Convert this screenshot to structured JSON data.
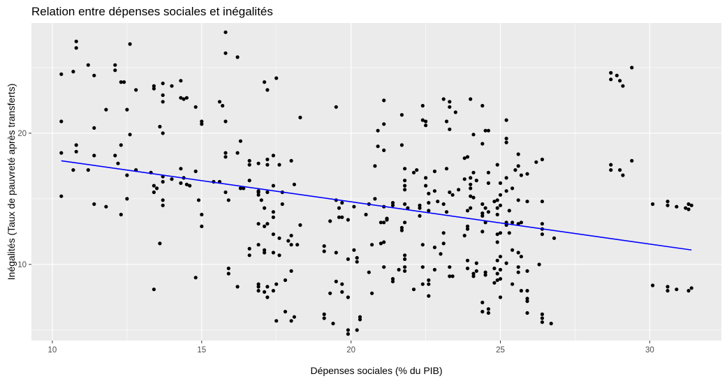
{
  "chart_data": {
    "type": "scatter",
    "title": "Relation entre dépenses sociales et inégalités",
    "xlabel": "Dépenses sociales (% du PIB)",
    "ylabel": "Inégalités (Taux de pauvreté après transferts)",
    "xlim": [
      9.3,
      32.4
    ],
    "ylim": [
      4.2,
      28.4
    ],
    "x_ticks": [
      10,
      15,
      20,
      25,
      30
    ],
    "y_ticks": [
      10,
      20
    ],
    "grid": true,
    "background": "#ebebeb",
    "point_color": "#000000",
    "trend_color": "#0000ff",
    "trend_line": {
      "x": [
        10.3,
        31.4
      ],
      "y": [
        17.9,
        11.1
      ]
    },
    "points": [
      [
        10.3,
        24.5
      ],
      [
        10.3,
        20.9
      ],
      [
        10.3,
        18.5
      ],
      [
        10.3,
        15.2
      ],
      [
        10.7,
        24.7
      ],
      [
        10.8,
        27.0
      ],
      [
        10.8,
        26.5
      ],
      [
        10.8,
        19.1
      ],
      [
        10.8,
        18.6
      ],
      [
        10.7,
        17.2
      ],
      [
        11.2,
        25.2
      ],
      [
        11.4,
        24.4
      ],
      [
        11.4,
        20.4
      ],
      [
        11.2,
        17.2
      ],
      [
        11.4,
        18.3
      ],
      [
        11.4,
        14.6
      ],
      [
        11.8,
        21.8
      ],
      [
        11.8,
        14.4
      ],
      [
        12.1,
        25.2
      ],
      [
        12.1,
        24.8
      ],
      [
        12.3,
        23.9
      ],
      [
        12.4,
        23.9
      ],
      [
        12.1,
        18.3
      ],
      [
        12.2,
        17.7
      ],
      [
        12.3,
        19.1
      ],
      [
        12.5,
        21.8
      ],
      [
        12.5,
        16.8
      ],
      [
        12.6,
        19.9
      ],
      [
        12.5,
        15.0
      ],
      [
        12.3,
        13.8
      ],
      [
        12.6,
        26.8
      ],
      [
        12.8,
        23.3
      ],
      [
        12.8,
        17.2
      ],
      [
        13.4,
        23.4
      ],
      [
        13.4,
        23.6
      ],
      [
        13.7,
        23.8
      ],
      [
        13.7,
        22.9
      ],
      [
        13.7,
        22.4
      ],
      [
        13.6,
        20.5
      ],
      [
        13.7,
        20.0
      ],
      [
        13.3,
        17.0
      ],
      [
        13.4,
        16.0
      ],
      [
        13.4,
        15.5
      ],
      [
        13.5,
        15.8
      ],
      [
        13.7,
        14.9
      ],
      [
        13.7,
        14.5
      ],
      [
        13.7,
        16.7
      ],
      [
        13.7,
        16.3
      ],
      [
        13.6,
        11.6
      ],
      [
        13.4,
        8.1
      ],
      [
        14.0,
        23.6
      ],
      [
        14.0,
        16.5
      ],
      [
        14.3,
        24.0
      ],
      [
        14.3,
        22.7
      ],
      [
        14.4,
        22.6
      ],
      [
        14.5,
        22.7
      ],
      [
        14.8,
        22.0
      ],
      [
        14.3,
        17.3
      ],
      [
        14.3,
        16.2
      ],
      [
        14.4,
        16.6
      ],
      [
        14.5,
        16.1
      ],
      [
        14.6,
        16.0
      ],
      [
        14.8,
        17.1
      ],
      [
        14.9,
        14.9
      ],
      [
        15.0,
        20.7
      ],
      [
        15.0,
        20.9
      ],
      [
        14.8,
        9.0
      ],
      [
        15.0,
        13.8
      ],
      [
        15.0,
        12.9
      ],
      [
        15.4,
        16.3
      ],
      [
        15.6,
        22.4
      ],
      [
        15.7,
        22.1
      ],
      [
        15.8,
        27.7
      ],
      [
        15.8,
        26.1
      ],
      [
        15.8,
        20.9
      ],
      [
        15.8,
        18.2
      ],
      [
        15.8,
        18.5
      ],
      [
        15.6,
        16.3
      ],
      [
        15.8,
        15.5
      ],
      [
        15.9,
        14.9
      ],
      [
        15.9,
        9.7
      ],
      [
        15.9,
        9.3
      ],
      [
        16.2,
        25.8
      ],
      [
        16.3,
        19.4
      ],
      [
        16.2,
        18.5
      ],
      [
        16.3,
        15.8
      ],
      [
        16.4,
        15.8
      ],
      [
        16.2,
        8.3
      ],
      [
        16.6,
        17.6
      ],
      [
        16.6,
        17.9
      ],
      [
        16.6,
        16.4
      ],
      [
        16.6,
        11.2
      ],
      [
        16.6,
        10.7
      ],
      [
        16.9,
        17.7
      ],
      [
        16.9,
        15.6
      ],
      [
        16.9,
        15.5
      ],
      [
        16.9,
        15.3
      ],
      [
        17.0,
        14.9
      ],
      [
        16.9,
        13.1
      ],
      [
        16.9,
        11.5
      ],
      [
        16.9,
        8.5
      ],
      [
        16.9,
        8.3
      ],
      [
        16.9,
        8.0
      ],
      [
        17.1,
        23.9
      ],
      [
        17.2,
        23.3
      ],
      [
        17.2,
        17.6
      ],
      [
        17.2,
        18.0
      ],
      [
        17.2,
        15.5
      ],
      [
        17.1,
        14.3
      ],
      [
        17.2,
        13.1
      ],
      [
        17.1,
        12.9
      ],
      [
        17.1,
        11.1
      ],
      [
        17.1,
        10.9
      ],
      [
        17.2,
        8.3
      ],
      [
        17.1,
        7.9
      ],
      [
        17.2,
        7.5
      ],
      [
        17.5,
        24.2
      ],
      [
        17.4,
        18.3
      ],
      [
        17.4,
        16.0
      ],
      [
        17.4,
        14.0
      ],
      [
        17.4,
        13.6
      ],
      [
        17.4,
        12.3
      ],
      [
        17.4,
        10.9
      ],
      [
        17.5,
        8.5
      ],
      [
        17.4,
        8.0
      ],
      [
        17.5,
        5.7
      ],
      [
        17.6,
        17.6
      ],
      [
        17.7,
        15.5
      ],
      [
        17.6,
        12.0
      ],
      [
        17.6,
        10.7
      ],
      [
        17.7,
        14.6
      ],
      [
        17.9,
        11.8
      ],
      [
        17.8,
        8.8
      ],
      [
        17.8,
        6.4
      ],
      [
        18.0,
        17.9
      ],
      [
        18.1,
        16.1
      ],
      [
        18.0,
        12.2
      ],
      [
        18.0,
        11.5
      ],
      [
        18.0,
        9.5
      ],
      [
        18.0,
        5.7
      ],
      [
        18.2,
        11.5
      ],
      [
        18.1,
        6.0
      ],
      [
        18.3,
        21.2
      ],
      [
        18.3,
        13.0
      ],
      [
        19.1,
        11.4
      ],
      [
        19.1,
        11.0
      ],
      [
        19.1,
        6.2
      ],
      [
        19.1,
        5.9
      ],
      [
        19.3,
        7.8
      ],
      [
        19.3,
        13.3
      ],
      [
        19.4,
        5.5
      ],
      [
        19.5,
        22.0
      ],
      [
        19.6,
        14.3
      ],
      [
        19.5,
        14.9
      ],
      [
        19.7,
        14.7
      ],
      [
        19.6,
        13.6
      ],
      [
        19.5,
        10.9
      ],
      [
        19.5,
        8.7
      ],
      [
        19.7,
        8.5
      ],
      [
        19.7,
        7.9
      ],
      [
        19.7,
        13.6
      ],
      [
        19.9,
        13.4
      ],
      [
        19.9,
        10.4
      ],
      [
        19.9,
        7.5
      ],
      [
        19.9,
        5.0
      ],
      [
        19.9,
        4.7
      ],
      [
        20.1,
        11.1
      ],
      [
        20.2,
        5.0
      ],
      [
        20.2,
        10.5
      ],
      [
        20.2,
        10.2
      ],
      [
        20.3,
        6.0
      ],
      [
        20.3,
        5.8
      ],
      [
        20.1,
        14.4
      ],
      [
        20.5,
        13.8
      ],
      [
        20.6,
        14.6
      ],
      [
        20.7,
        11.5
      ],
      [
        20.6,
        9.4
      ],
      [
        20.7,
        7.8
      ],
      [
        20.8,
        17.5
      ],
      [
        20.8,
        15.0
      ],
      [
        20.9,
        20.2
      ],
      [
        20.9,
        19.0
      ],
      [
        21.0,
        13.2
      ],
      [
        21.0,
        11.6
      ],
      [
        21.1,
        22.5
      ],
      [
        21.1,
        20.7
      ],
      [
        21.1,
        18.7
      ],
      [
        21.1,
        14.4
      ],
      [
        21.1,
        13.2
      ],
      [
        21.1,
        11.7
      ],
      [
        21.1,
        9.8
      ],
      [
        21.2,
        13.5
      ],
      [
        21.2,
        13.4
      ],
      [
        21.4,
        14.7
      ],
      [
        21.4,
        14.5
      ],
      [
        21.4,
        8.9
      ],
      [
        21.4,
        8.7
      ],
      [
        21.6,
        9.6
      ],
      [
        21.7,
        21.4
      ],
      [
        21.7,
        19.1
      ],
      [
        21.7,
        12.8
      ],
      [
        21.7,
        12.6
      ],
      [
        21.8,
        17.3
      ],
      [
        21.8,
        16.4
      ],
      [
        21.8,
        16.0
      ],
      [
        21.8,
        15.7
      ],
      [
        21.8,
        14.6
      ],
      [
        21.8,
        13.2
      ],
      [
        21.8,
        10.7
      ],
      [
        21.8,
        10.4
      ],
      [
        21.8,
        9.8
      ],
      [
        21.8,
        9.5
      ],
      [
        21.9,
        14.3
      ],
      [
        22.1,
        17.0
      ],
      [
        22.1,
        8.1
      ],
      [
        22.2,
        17.2
      ],
      [
        22.3,
        14.5
      ],
      [
        22.3,
        14.3
      ],
      [
        22.3,
        13.7
      ],
      [
        22.4,
        11.5
      ],
      [
        22.4,
        9.8
      ],
      [
        22.4,
        8.5
      ],
      [
        22.4,
        22.1
      ],
      [
        22.4,
        21.0
      ],
      [
        22.5,
        20.6
      ],
      [
        22.5,
        20.9
      ],
      [
        22.5,
        16.6
      ],
      [
        22.5,
        16.0
      ],
      [
        22.6,
        15.4
      ],
      [
        22.6,
        14.7
      ],
      [
        22.6,
        14.1
      ],
      [
        22.6,
        8.8
      ],
      [
        22.6,
        8.5
      ],
      [
        22.6,
        7.6
      ],
      [
        22.8,
        15.6
      ],
      [
        22.8,
        17.1
      ],
      [
        22.8,
        11.3
      ],
      [
        22.8,
        9.6
      ],
      [
        22.9,
        14.8
      ],
      [
        23.0,
        10.8
      ],
      [
        23.1,
        22.6
      ],
      [
        23.1,
        14.6
      ],
      [
        23.1,
        12.4
      ],
      [
        23.1,
        11.6
      ],
      [
        23.2,
        20.9
      ],
      [
        23.2,
        17.3
      ],
      [
        23.2,
        14.0
      ],
      [
        23.3,
        22.4
      ],
      [
        23.3,
        22.0
      ],
      [
        23.3,
        20.3
      ],
      [
        23.3,
        9.8
      ],
      [
        23.3,
        9.1
      ],
      [
        23.3,
        15.5
      ],
      [
        23.4,
        15.3
      ],
      [
        23.4,
        9.1
      ],
      [
        23.5,
        21.6
      ],
      [
        23.6,
        15.7
      ],
      [
        23.8,
        18.1
      ],
      [
        23.8,
        16.5
      ],
      [
        23.8,
        12.2
      ],
      [
        23.9,
        18.2
      ],
      [
        23.9,
        14.1
      ],
      [
        23.9,
        12.9
      ],
      [
        23.9,
        12.7
      ],
      [
        23.9,
        10.3
      ],
      [
        23.9,
        9.7
      ],
      [
        24.0,
        22.6
      ],
      [
        24.0,
        16.6
      ],
      [
        24.0,
        16.1
      ],
      [
        24.0,
        15.8
      ],
      [
        24.0,
        15.2
      ],
      [
        24.0,
        14.3
      ],
      [
        24.1,
        19.9
      ],
      [
        24.1,
        17.0
      ],
      [
        24.1,
        15.1
      ],
      [
        24.1,
        9.3
      ],
      [
        24.1,
        9.1
      ],
      [
        24.2,
        16.4
      ],
      [
        24.2,
        10.1
      ],
      [
        24.2,
        9.5
      ],
      [
        24.4,
        22.1
      ],
      [
        24.4,
        19.2
      ],
      [
        24.4,
        13.9
      ],
      [
        24.4,
        13.7
      ],
      [
        24.4,
        14.6
      ],
      [
        24.4,
        12.5
      ],
      [
        24.4,
        7.1
      ],
      [
        24.4,
        6.4
      ],
      [
        24.5,
        20.2
      ],
      [
        24.5,
        14.3
      ],
      [
        24.5,
        13.2
      ],
      [
        24.5,
        9.4
      ],
      [
        24.5,
        9.2
      ],
      [
        24.6,
        20.2
      ],
      [
        24.6,
        17.0
      ],
      [
        24.6,
        16.2
      ],
      [
        24.6,
        14.0
      ],
      [
        24.6,
        6.6
      ],
      [
        24.6,
        6.3
      ],
      [
        24.8,
        14.8
      ],
      [
        24.8,
        9.7
      ],
      [
        24.8,
        8.6
      ],
      [
        24.9,
        17.6
      ],
      [
        24.9,
        14.9
      ],
      [
        24.9,
        14.3
      ],
      [
        24.9,
        13.8
      ],
      [
        24.9,
        12.3
      ],
      [
        24.9,
        11.7
      ],
      [
        24.9,
        10.3
      ],
      [
        24.9,
        9.3
      ],
      [
        24.9,
        8.8
      ],
      [
        25.0,
        16.2
      ],
      [
        25.0,
        15.3
      ],
      [
        25.0,
        14.5
      ],
      [
        25.0,
        12.4
      ],
      [
        25.0,
        10.6
      ],
      [
        25.0,
        9.6
      ],
      [
        25.0,
        8.9
      ],
      [
        25.0,
        7.5
      ],
      [
        25.2,
        21.0
      ],
      [
        25.2,
        19.6
      ],
      [
        25.2,
        19.3
      ],
      [
        25.2,
        16.6
      ],
      [
        25.2,
        15.6
      ],
      [
        25.2,
        13.2
      ],
      [
        25.2,
        13.0
      ],
      [
        25.2,
        10.1
      ],
      [
        25.3,
        14.1
      ],
      [
        25.3,
        12.4
      ],
      [
        25.4,
        15.8
      ],
      [
        25.4,
        13.2
      ],
      [
        25.4,
        11.1
      ],
      [
        25.4,
        8.5
      ],
      [
        25.5,
        17.2
      ],
      [
        25.6,
        18.4
      ],
      [
        25.6,
        17.5
      ],
      [
        25.6,
        14.9
      ],
      [
        25.6,
        13.1
      ],
      [
        25.6,
        10.9
      ],
      [
        25.6,
        9.8
      ],
      [
        25.6,
        9.4
      ],
      [
        25.7,
        16.8
      ],
      [
        25.7,
        13.2
      ],
      [
        25.7,
        10.6
      ],
      [
        25.7,
        8.0
      ],
      [
        25.9,
        16.9
      ],
      [
        25.9,
        14.8
      ],
      [
        25.9,
        8.0
      ],
      [
        25.9,
        7.4
      ],
      [
        25.9,
        7.2
      ],
      [
        25.9,
        6.3
      ],
      [
        25.9,
        9.5
      ],
      [
        26.2,
        17.8
      ],
      [
        26.3,
        10.0
      ],
      [
        26.4,
        18.0
      ],
      [
        26.4,
        14.8
      ],
      [
        26.4,
        13.1
      ],
      [
        26.4,
        12.7
      ],
      [
        26.4,
        12.3
      ],
      [
        26.4,
        6.2
      ],
      [
        26.4,
        5.9
      ],
      [
        26.4,
        5.6
      ],
      [
        26.7,
        5.5
      ],
      [
        26.8,
        12.0
      ],
      [
        28.7,
        24.6
      ],
      [
        28.7,
        24.1
      ],
      [
        28.7,
        17.6
      ],
      [
        28.7,
        17.2
      ],
      [
        28.9,
        24.4
      ],
      [
        29.0,
        24.0
      ],
      [
        29.0,
        17.2
      ],
      [
        29.1,
        23.6
      ],
      [
        29.1,
        16.8
      ],
      [
        29.4,
        25.0
      ],
      [
        29.4,
        17.9
      ],
      [
        30.1,
        14.6
      ],
      [
        30.1,
        8.4
      ],
      [
        30.6,
        14.8
      ],
      [
        30.6,
        14.5
      ],
      [
        30.6,
        8.3
      ],
      [
        30.6,
        8.0
      ],
      [
        30.9,
        14.4
      ],
      [
        30.9,
        8.1
      ],
      [
        31.2,
        14.3
      ],
      [
        31.3,
        14.6
      ],
      [
        31.3,
        14.2
      ],
      [
        31.3,
        8.0
      ],
      [
        31.4,
        14.5
      ],
      [
        31.4,
        8.2
      ]
    ]
  }
}
